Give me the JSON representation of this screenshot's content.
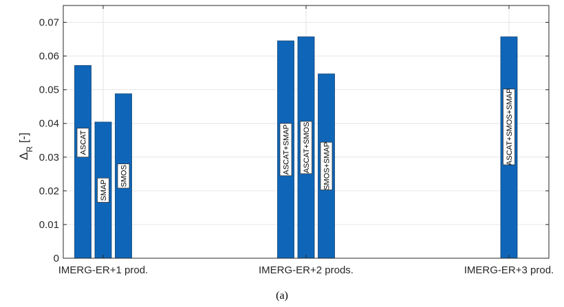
{
  "chart_data": {
    "type": "bar",
    "ylabel_main": "Δ",
    "ylabel_sub": "R",
    "ylabel_suffix": " [-]",
    "ylim": [
      0,
      0.075
    ],
    "yticks": [
      "0",
      "0.01",
      "0.02",
      "0.03",
      "0.04",
      "0.05",
      "0.06",
      "0.07"
    ],
    "grid": true,
    "groups": [
      {
        "label": "IMERG-ER+1 prod.",
        "bars": [
          {
            "label": "ASCAT",
            "value": 0.0572
          },
          {
            "label": "SMAP",
            "value": 0.0404
          },
          {
            "label": "SMOS",
            "value": 0.0488
          }
        ]
      },
      {
        "label": "IMERG-ER+2 prods.",
        "bars": [
          {
            "label": "ASCAT+SMAP",
            "value": 0.0645
          },
          {
            "label": "ASCAT+SMOS",
            "value": 0.0657
          },
          {
            "label": "SMOS+SMAP",
            "value": 0.0547
          }
        ]
      },
      {
        "label": "IMERG-ER+3 prod.",
        "bars": [
          {
            "label": "ASCAT+SMOS+SMAP",
            "value": 0.0657
          }
        ]
      }
    ],
    "bar_color": "#0f66b8"
  },
  "caption": "(a)"
}
